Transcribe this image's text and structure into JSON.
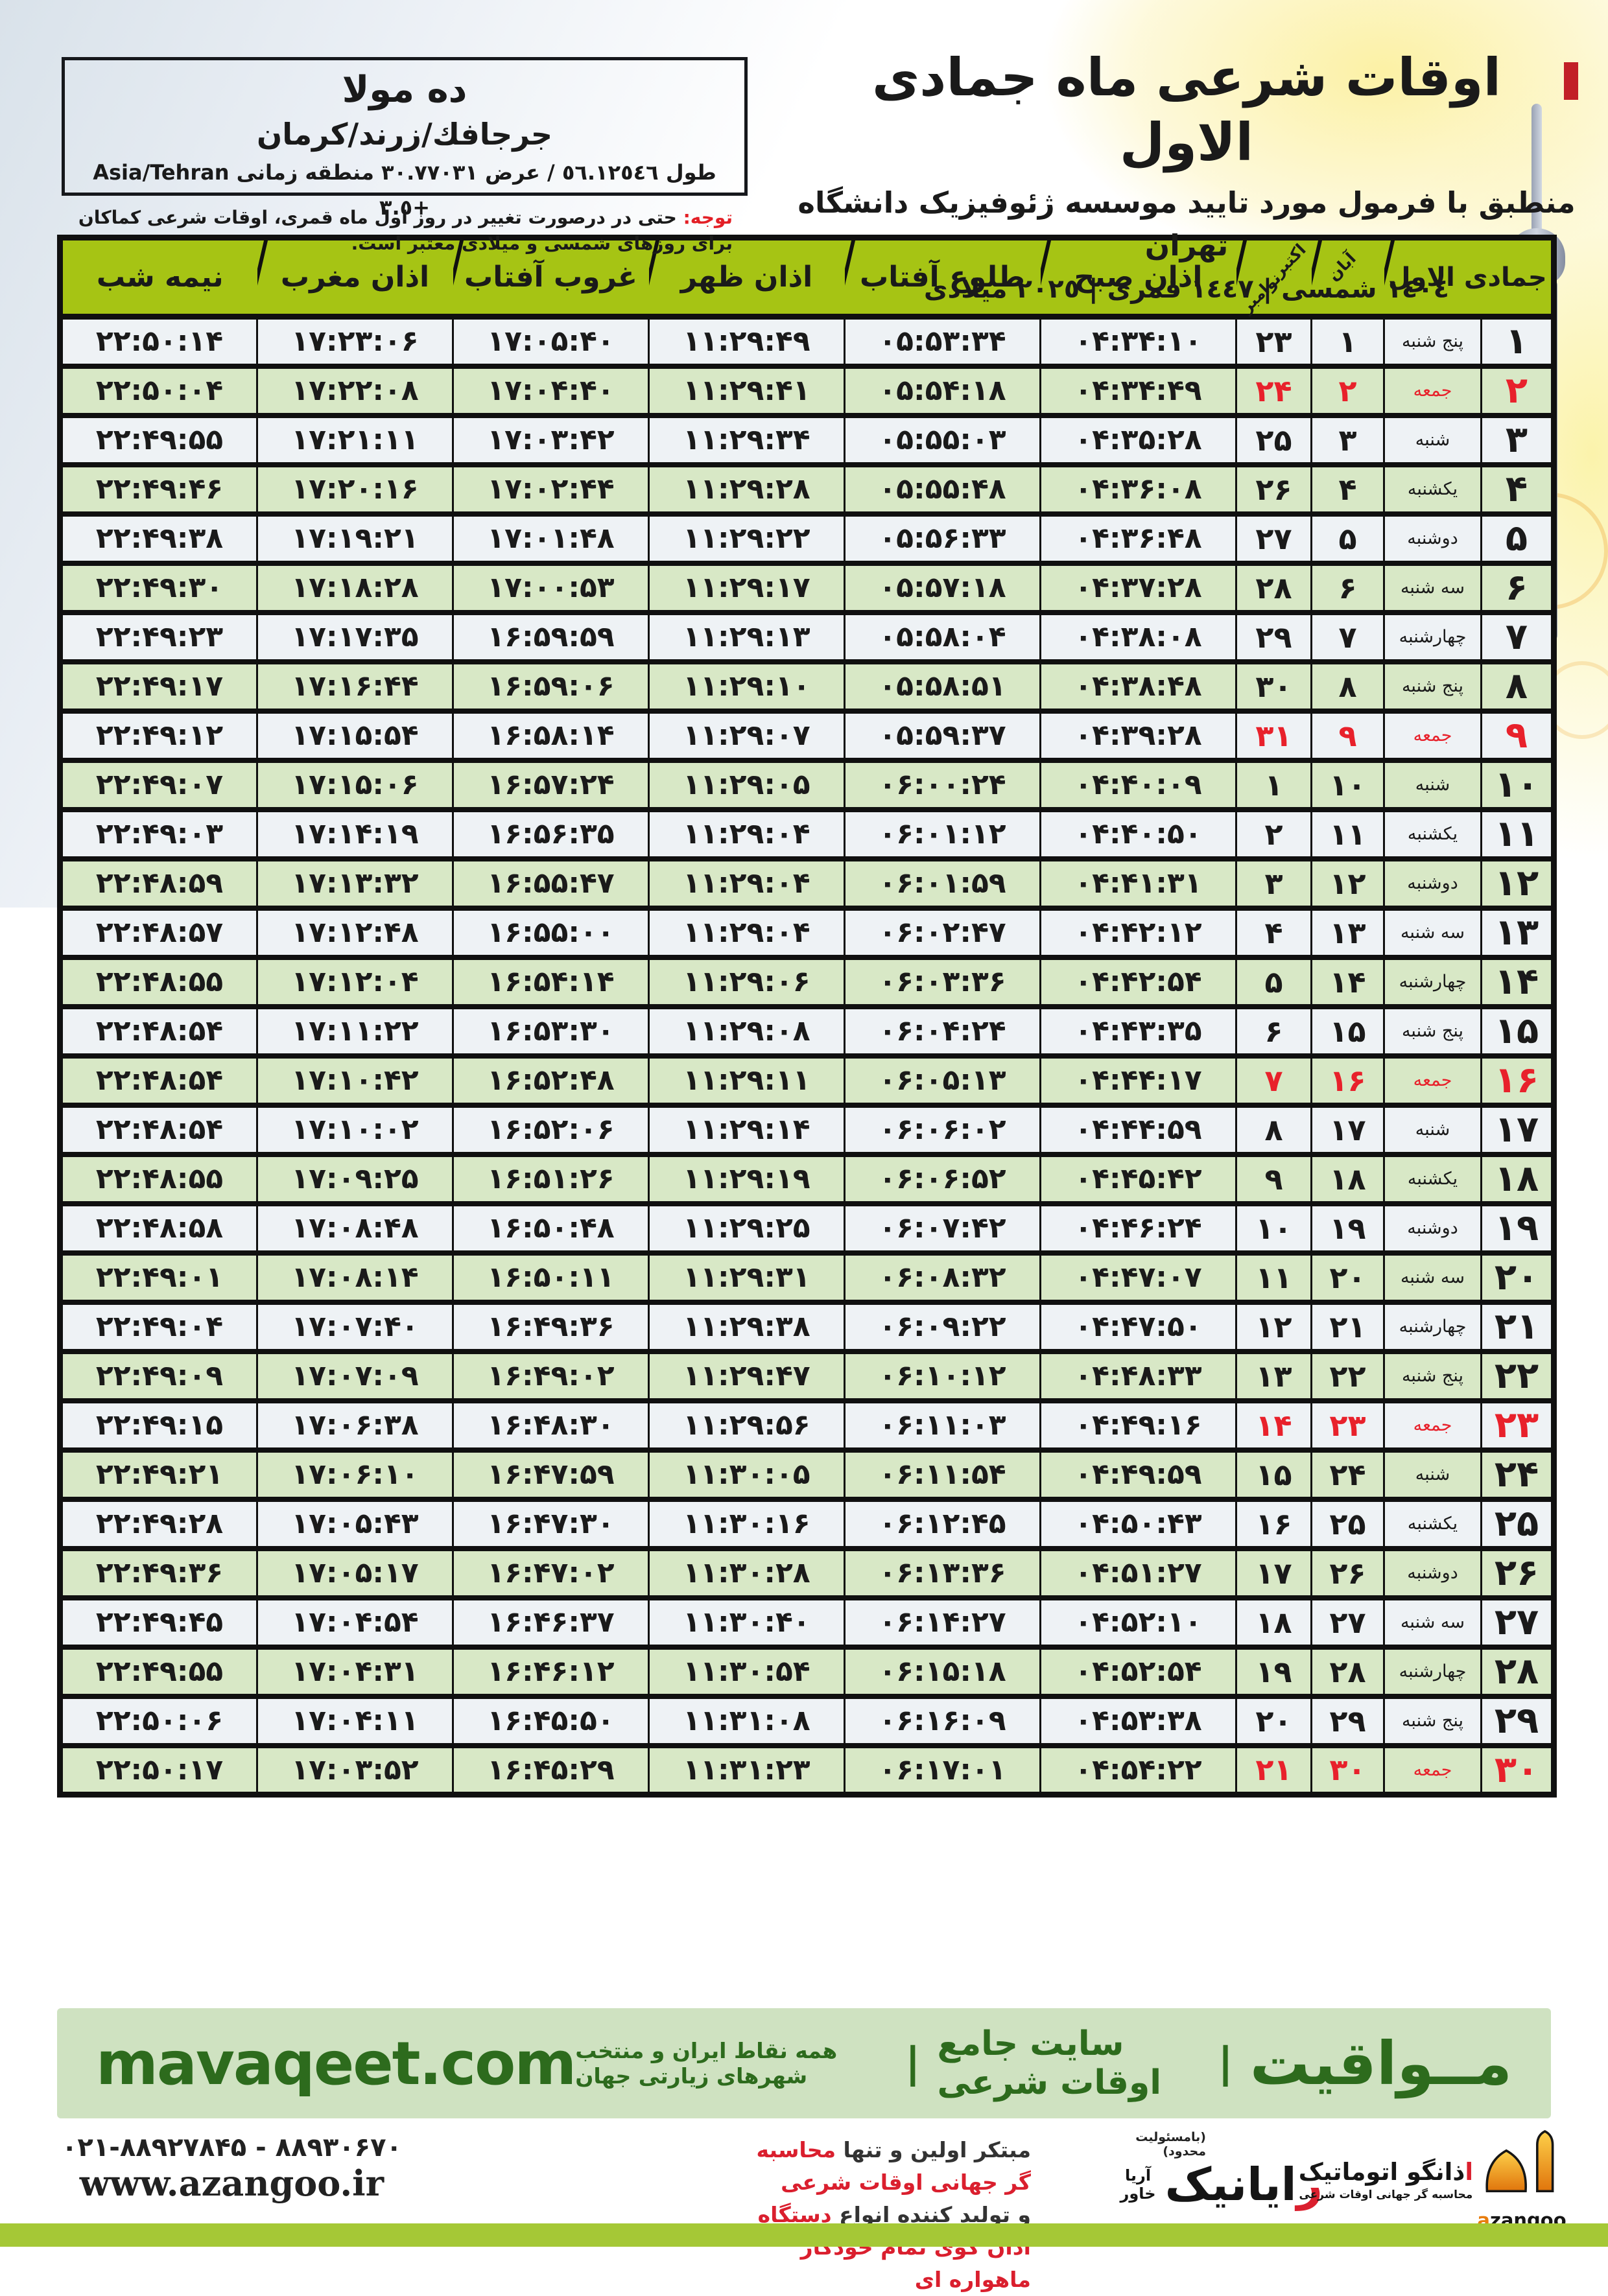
{
  "title": {
    "main": "اوقات شرعی ماه جمادی الاول",
    "subtitle": "منطبق با فرمول مورد تایید موسسه ژئوفیزیک دانشگاه تهران",
    "era_line": "١٤٠٤ شمسی | ١٤٤٧ قمری | ٢٠٢٥ میلادی"
  },
  "location_box": {
    "name": "ده مولا",
    "region": "جرجافك/زرند/كرمان",
    "coords_line": "طول ٥٦.١٢٥٤٦ / عرض ٣٠.٧٧٠٣١ منطقه زمانی Asia/Tehran +٣.٥"
  },
  "note": {
    "label": "توجه:",
    "text": "حتی در درصورت تغییر در روز اول ماه قمری، اوقات شرعی کماکان برای روزهای شمسی و میلادی معتبر است."
  },
  "table": {
    "headers": {
      "month": "جمادی الاول",
      "aban": "آبان",
      "october": "اکتبر",
      "november": "نوامبر",
      "fajr": "اذان صبح",
      "sunrise": "طلوع آفتاب",
      "dhuhr": "اذان ظهر",
      "sunset": "غروب آفتاب",
      "maghrib": "اذان مغرب",
      "midnight": "نیمه شب"
    },
    "rows": [
      {
        "day": "۱",
        "weekday": "پنج شنبه",
        "aban": "۱",
        "greg": "۲۳",
        "fajr": "۰۴:۳۴:۱۰",
        "sunrise": "۰۵:۵۳:۳۴",
        "dhuhr": "۱۱:۲۹:۴۹",
        "sunset": "۱۷:۰۵:۴۰",
        "maghrib": "۱۷:۲۳:۰۶",
        "midnight": "۲۲:۵۰:۱۴",
        "friday": false
      },
      {
        "day": "۲",
        "weekday": "جمعه",
        "aban": "۲",
        "greg": "۲۴",
        "fajr": "۰۴:۳۴:۴۹",
        "sunrise": "۰۵:۵۴:۱۸",
        "dhuhr": "۱۱:۲۹:۴۱",
        "sunset": "۱۷:۰۴:۴۰",
        "maghrib": "۱۷:۲۲:۰۸",
        "midnight": "۲۲:۵۰:۰۴",
        "friday": true
      },
      {
        "day": "۳",
        "weekday": "شنبه",
        "aban": "۳",
        "greg": "۲۵",
        "fajr": "۰۴:۳۵:۲۸",
        "sunrise": "۰۵:۵۵:۰۳",
        "dhuhr": "۱۱:۲۹:۳۴",
        "sunset": "۱۷:۰۳:۴۲",
        "maghrib": "۱۷:۲۱:۱۱",
        "midnight": "۲۲:۴۹:۵۵",
        "friday": false
      },
      {
        "day": "۴",
        "weekday": "یکشنبه",
        "aban": "۴",
        "greg": "۲۶",
        "fajr": "۰۴:۳۶:۰۸",
        "sunrise": "۰۵:۵۵:۴۸",
        "dhuhr": "۱۱:۲۹:۲۸",
        "sunset": "۱۷:۰۲:۴۴",
        "maghrib": "۱۷:۲۰:۱۶",
        "midnight": "۲۲:۴۹:۴۶",
        "friday": false
      },
      {
        "day": "۵",
        "weekday": "دوشنبه",
        "aban": "۵",
        "greg": "۲۷",
        "fajr": "۰۴:۳۶:۴۸",
        "sunrise": "۰۵:۵۶:۳۳",
        "dhuhr": "۱۱:۲۹:۲۲",
        "sunset": "۱۷:۰۱:۴۸",
        "maghrib": "۱۷:۱۹:۲۱",
        "midnight": "۲۲:۴۹:۳۸",
        "friday": false
      },
      {
        "day": "۶",
        "weekday": "سه شنبه",
        "aban": "۶",
        "greg": "۲۸",
        "fajr": "۰۴:۳۷:۲۸",
        "sunrise": "۰۵:۵۷:۱۸",
        "dhuhr": "۱۱:۲۹:۱۷",
        "sunset": "۱۷:۰۰:۵۳",
        "maghrib": "۱۷:۱۸:۲۸",
        "midnight": "۲۲:۴۹:۳۰",
        "friday": false
      },
      {
        "day": "۷",
        "weekday": "چهارشنبه",
        "aban": "۷",
        "greg": "۲۹",
        "fajr": "۰۴:۳۸:۰۸",
        "sunrise": "۰۵:۵۸:۰۴",
        "dhuhr": "۱۱:۲۹:۱۳",
        "sunset": "۱۶:۵۹:۵۹",
        "maghrib": "۱۷:۱۷:۳۵",
        "midnight": "۲۲:۴۹:۲۳",
        "friday": false
      },
      {
        "day": "۸",
        "weekday": "پنج شنبه",
        "aban": "۸",
        "greg": "۳۰",
        "fajr": "۰۴:۳۸:۴۸",
        "sunrise": "۰۵:۵۸:۵۱",
        "dhuhr": "۱۱:۲۹:۱۰",
        "sunset": "۱۶:۵۹:۰۶",
        "maghrib": "۱۷:۱۶:۴۴",
        "midnight": "۲۲:۴۹:۱۷",
        "friday": false
      },
      {
        "day": "۹",
        "weekday": "جمعه",
        "aban": "۹",
        "greg": "۳۱",
        "fajr": "۰۴:۳۹:۲۸",
        "sunrise": "۰۵:۵۹:۳۷",
        "dhuhr": "۱۱:۲۹:۰۷",
        "sunset": "۱۶:۵۸:۱۴",
        "maghrib": "۱۷:۱۵:۵۴",
        "midnight": "۲۲:۴۹:۱۲",
        "friday": true
      },
      {
        "day": "۱۰",
        "weekday": "شنبه",
        "aban": "۱۰",
        "greg": "۱",
        "fajr": "۰۴:۴۰:۰۹",
        "sunrise": "۰۶:۰۰:۲۴",
        "dhuhr": "۱۱:۲۹:۰۵",
        "sunset": "۱۶:۵۷:۲۴",
        "maghrib": "۱۷:۱۵:۰۶",
        "midnight": "۲۲:۴۹:۰۷",
        "friday": false
      },
      {
        "day": "۱۱",
        "weekday": "یکشنبه",
        "aban": "۱۱",
        "greg": "۲",
        "fajr": "۰۴:۴۰:۵۰",
        "sunrise": "۰۶:۰۱:۱۲",
        "dhuhr": "۱۱:۲۹:۰۴",
        "sunset": "۱۶:۵۶:۳۵",
        "maghrib": "۱۷:۱۴:۱۹",
        "midnight": "۲۲:۴۹:۰۳",
        "friday": false
      },
      {
        "day": "۱۲",
        "weekday": "دوشنبه",
        "aban": "۱۲",
        "greg": "۳",
        "fajr": "۰۴:۴۱:۳۱",
        "sunrise": "۰۶:۰۱:۵۹",
        "dhuhr": "۱۱:۲۹:۰۴",
        "sunset": "۱۶:۵۵:۴۷",
        "maghrib": "۱۷:۱۳:۳۲",
        "midnight": "۲۲:۴۸:۵۹",
        "friday": false
      },
      {
        "day": "۱۳",
        "weekday": "سه شنبه",
        "aban": "۱۳",
        "greg": "۴",
        "fajr": "۰۴:۴۲:۱۲",
        "sunrise": "۰۶:۰۲:۴۷",
        "dhuhr": "۱۱:۲۹:۰۴",
        "sunset": "۱۶:۵۵:۰۰",
        "maghrib": "۱۷:۱۲:۴۸",
        "midnight": "۲۲:۴۸:۵۷",
        "friday": false
      },
      {
        "day": "۱۴",
        "weekday": "چهارشنبه",
        "aban": "۱۴",
        "greg": "۵",
        "fajr": "۰۴:۴۲:۵۴",
        "sunrise": "۰۶:۰۳:۳۶",
        "dhuhr": "۱۱:۲۹:۰۶",
        "sunset": "۱۶:۵۴:۱۴",
        "maghrib": "۱۷:۱۲:۰۴",
        "midnight": "۲۲:۴۸:۵۵",
        "friday": false
      },
      {
        "day": "۱۵",
        "weekday": "پنج شنبه",
        "aban": "۱۵",
        "greg": "۶",
        "fajr": "۰۴:۴۳:۳۵",
        "sunrise": "۰۶:۰۴:۲۴",
        "dhuhr": "۱۱:۲۹:۰۸",
        "sunset": "۱۶:۵۳:۳۰",
        "maghrib": "۱۷:۱۱:۲۲",
        "midnight": "۲۲:۴۸:۵۴",
        "friday": false
      },
      {
        "day": "۱۶",
        "weekday": "جمعه",
        "aban": "۱۶",
        "greg": "۷",
        "fajr": "۰۴:۴۴:۱۷",
        "sunrise": "۰۶:۰۵:۱۳",
        "dhuhr": "۱۱:۲۹:۱۱",
        "sunset": "۱۶:۵۲:۴۸",
        "maghrib": "۱۷:۱۰:۴۲",
        "midnight": "۲۲:۴۸:۵۴",
        "friday": true
      },
      {
        "day": "۱۷",
        "weekday": "شنبه",
        "aban": "۱۷",
        "greg": "۸",
        "fajr": "۰۴:۴۴:۵۹",
        "sunrise": "۰۶:۰۶:۰۲",
        "dhuhr": "۱۱:۲۹:۱۴",
        "sunset": "۱۶:۵۲:۰۶",
        "maghrib": "۱۷:۱۰:۰۲",
        "midnight": "۲۲:۴۸:۵۴",
        "friday": false
      },
      {
        "day": "۱۸",
        "weekday": "یکشنبه",
        "aban": "۱۸",
        "greg": "۹",
        "fajr": "۰۴:۴۵:۴۲",
        "sunrise": "۰۶:۰۶:۵۲",
        "dhuhr": "۱۱:۲۹:۱۹",
        "sunset": "۱۶:۵۱:۲۶",
        "maghrib": "۱۷:۰۹:۲۵",
        "midnight": "۲۲:۴۸:۵۵",
        "friday": false
      },
      {
        "day": "۱۹",
        "weekday": "دوشنبه",
        "aban": "۱۹",
        "greg": "۱۰",
        "fajr": "۰۴:۴۶:۲۴",
        "sunrise": "۰۶:۰۷:۴۲",
        "dhuhr": "۱۱:۲۹:۲۵",
        "sunset": "۱۶:۵۰:۴۸",
        "maghrib": "۱۷:۰۸:۴۸",
        "midnight": "۲۲:۴۸:۵۸",
        "friday": false
      },
      {
        "day": "۲۰",
        "weekday": "سه شنبه",
        "aban": "۲۰",
        "greg": "۱۱",
        "fajr": "۰۴:۴۷:۰۷",
        "sunrise": "۰۶:۰۸:۳۲",
        "dhuhr": "۱۱:۲۹:۳۱",
        "sunset": "۱۶:۵۰:۱۱",
        "maghrib": "۱۷:۰۸:۱۴",
        "midnight": "۲۲:۴۹:۰۱",
        "friday": false
      },
      {
        "day": "۲۱",
        "weekday": "چهارشنبه",
        "aban": "۲۱",
        "greg": "۱۲",
        "fajr": "۰۴:۴۷:۵۰",
        "sunrise": "۰۶:۰۹:۲۲",
        "dhuhr": "۱۱:۲۹:۳۸",
        "sunset": "۱۶:۴۹:۳۶",
        "maghrib": "۱۷:۰۷:۴۰",
        "midnight": "۲۲:۴۹:۰۴",
        "friday": false
      },
      {
        "day": "۲۲",
        "weekday": "پنج شنبه",
        "aban": "۲۲",
        "greg": "۱۳",
        "fajr": "۰۴:۴۸:۳۳",
        "sunrise": "۰۶:۱۰:۱۲",
        "dhuhr": "۱۱:۲۹:۴۷",
        "sunset": "۱۶:۴۹:۰۲",
        "maghrib": "۱۷:۰۷:۰۹",
        "midnight": "۲۲:۴۹:۰۹",
        "friday": false
      },
      {
        "day": "۲۳",
        "weekday": "جمعه",
        "aban": "۲۳",
        "greg": "۱۴",
        "fajr": "۰۴:۴۹:۱۶",
        "sunrise": "۰۶:۱۱:۰۳",
        "dhuhr": "۱۱:۲۹:۵۶",
        "sunset": "۱۶:۴۸:۳۰",
        "maghrib": "۱۷:۰۶:۳۸",
        "midnight": "۲۲:۴۹:۱۵",
        "friday": true
      },
      {
        "day": "۲۴",
        "weekday": "شنبه",
        "aban": "۲۴",
        "greg": "۱۵",
        "fajr": "۰۴:۴۹:۵۹",
        "sunrise": "۰۶:۱۱:۵۴",
        "dhuhr": "۱۱:۳۰:۰۵",
        "sunset": "۱۶:۴۷:۵۹",
        "maghrib": "۱۷:۰۶:۱۰",
        "midnight": "۲۲:۴۹:۲۱",
        "friday": false
      },
      {
        "day": "۲۵",
        "weekday": "یکشنبه",
        "aban": "۲۵",
        "greg": "۱۶",
        "fajr": "۰۴:۵۰:۴۳",
        "sunrise": "۰۶:۱۲:۴۵",
        "dhuhr": "۱۱:۳۰:۱۶",
        "sunset": "۱۶:۴۷:۳۰",
        "maghrib": "۱۷:۰۵:۴۳",
        "midnight": "۲۲:۴۹:۲۸",
        "friday": false
      },
      {
        "day": "۲۶",
        "weekday": "دوشنبه",
        "aban": "۲۶",
        "greg": "۱۷",
        "fajr": "۰۴:۵۱:۲۷",
        "sunrise": "۰۶:۱۳:۳۶",
        "dhuhr": "۱۱:۳۰:۲۸",
        "sunset": "۱۶:۴۷:۰۲",
        "maghrib": "۱۷:۰۵:۱۷",
        "midnight": "۲۲:۴۹:۳۶",
        "friday": false
      },
      {
        "day": "۲۷",
        "weekday": "سه شنبه",
        "aban": "۲۷",
        "greg": "۱۸",
        "fajr": "۰۴:۵۲:۱۰",
        "sunrise": "۰۶:۱۴:۲۷",
        "dhuhr": "۱۱:۳۰:۴۰",
        "sunset": "۱۶:۴۶:۳۷",
        "maghrib": "۱۷:۰۴:۵۴",
        "midnight": "۲۲:۴۹:۴۵",
        "friday": false
      },
      {
        "day": "۲۸",
        "weekday": "چهارشنبه",
        "aban": "۲۸",
        "greg": "۱۹",
        "fajr": "۰۴:۵۲:۵۴",
        "sunrise": "۰۶:۱۵:۱۸",
        "dhuhr": "۱۱:۳۰:۵۴",
        "sunset": "۱۶:۴۶:۱۲",
        "maghrib": "۱۷:۰۴:۳۱",
        "midnight": "۲۲:۴۹:۵۵",
        "friday": false
      },
      {
        "day": "۲۹",
        "weekday": "پنج شنبه",
        "aban": "۲۹",
        "greg": "۲۰",
        "fajr": "۰۴:۵۳:۳۸",
        "sunrise": "۰۶:۱۶:۰۹",
        "dhuhr": "۱۱:۳۱:۰۸",
        "sunset": "۱۶:۴۵:۵۰",
        "maghrib": "۱۷:۰۴:۱۱",
        "midnight": "۲۲:۵۰:۰۶",
        "friday": false
      },
      {
        "day": "۳۰",
        "weekday": "جمعه",
        "aban": "۳۰",
        "greg": "۲۱",
        "fajr": "۰۴:۵۴:۲۲",
        "sunrise": "۰۶:۱۷:۰۱",
        "dhuhr": "۱۱:۳۱:۲۳",
        "sunset": "۱۶:۴۵:۲۹",
        "maghrib": "۱۷:۰۳:۵۲",
        "midnight": "۲۲:۵۰:۱۷",
        "friday": true
      }
    ]
  },
  "banner": {
    "brand": "مــواقیت",
    "separator": "|",
    "tagline_bold": "سایت جامع اوقات شرعی",
    "tagline": "همه نقاط ایران و منتخب شهرهای زیارتی جهان",
    "url": "mavaqeet.com"
  },
  "footer": {
    "phone_line": "۰۲۱-۸۸۹۲۷۸۴۵ - ۸۸۹۳۰۶۷۰",
    "website": "www.azangoo.ir",
    "promo_line1_black": "مبتکر اولین و تنها ",
    "promo_line1_red": "محاسبه گر جهانی اوقات شرعی",
    "promo_line2_black": "و تولید کننده انواع ",
    "promo_line2_red": "دستگاه اذان گوی تمام خودکار ماهواره ای",
    "rayanik_note": "(بامسئولیت محدود)",
    "rayanik_initial": "ر",
    "rayanik_rest": "ایانیک",
    "rayanik_sub_top": "آریا",
    "rayanik_sub_bottom": "خاور",
    "azangoo_fa_initial": "ا",
    "azangoo_fa_rest": "ذانگو اتوماتیک",
    "azangoo_fa_sub": "محاسبه گر جهانی اوقات شرعی",
    "azangoo_en_initial": "a",
    "azangoo_en_rest": "zangoo"
  },
  "colors": {
    "header_green": "#a6c414",
    "row_green": "#d8e8c6",
    "row_light": "#eef2f5",
    "friday_red": "#e8212b",
    "banner_bg": "#cfe2c1",
    "banner_text": "#2d6b1d",
    "bottom_bar_green": "#a5c836",
    "azangoo_orange": "#e87d0e"
  }
}
